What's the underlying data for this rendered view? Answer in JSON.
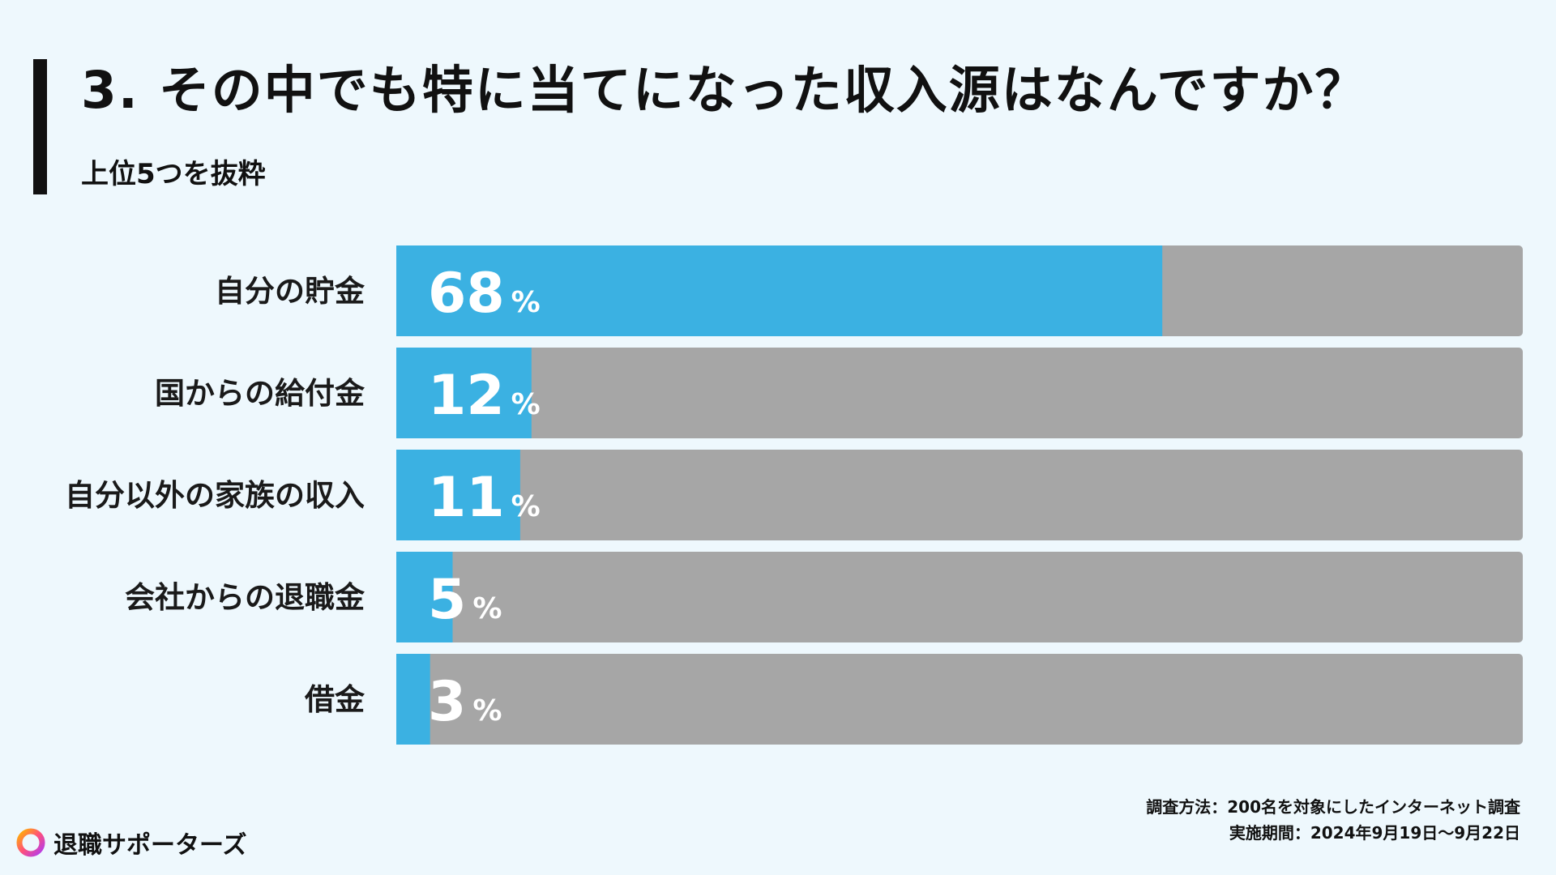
{
  "header": {
    "title": "3. その中でも特に当てになった収入源はなんですか？",
    "subtitle": "上位5つを抜粋"
  },
  "chart_data": {
    "type": "bar",
    "orientation": "horizontal",
    "categories": [
      "自分の貯金",
      "国からの給付金",
      "自分以外の家族の収入",
      "会社からの退職金",
      "借金"
    ],
    "values": [
      68,
      12,
      11,
      5,
      3
    ],
    "value_suffix": "%",
    "xlim": [
      0,
      100
    ],
    "colors": {
      "bar": "#3bb1e2",
      "track": "#a6a6a6"
    }
  },
  "footer": {
    "method": "調査方法：200名を対象にしたインターネット調査",
    "period": "実施期間：2024年9月19日〜9月22日"
  },
  "brand": {
    "name": "退職サポーターズ",
    "logo_icon": "ring-logo-icon"
  }
}
